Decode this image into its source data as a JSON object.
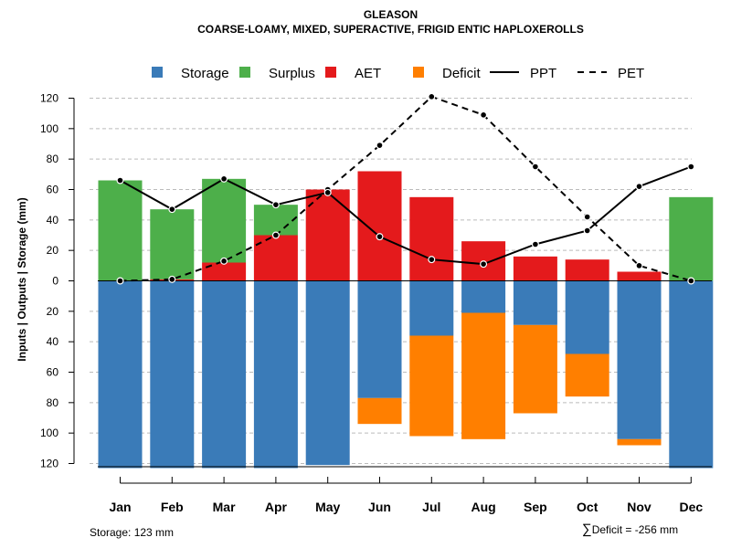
{
  "title": "GLEASON",
  "subtitle": "COARSE-LOAMY, MIXED, SUPERACTIVE, FRIGID ENTIC HAPLOXEROLLS",
  "colors": {
    "storage": "#3a7bb8",
    "surplus": "#4daf4a",
    "aet": "#e41a1c",
    "deficit": "#ff7f00",
    "grid": "#bbbbbb"
  },
  "chart_data": {
    "type": "bar",
    "title": "GLEASON",
    "subtitle": "COARSE-LOAMY, MIXED, SUPERACTIVE, FRIGID ENTIC HAPLOXEROLLS",
    "ylabel": "Inputs | Outputs | Storage    (mm)",
    "ylim": [
      -125,
      125
    ],
    "yticks": [
      120,
      100,
      80,
      60,
      40,
      20,
      0,
      -20,
      -40,
      -60,
      -80,
      -100,
      -120
    ],
    "ytick_labels": [
      "120",
      "100",
      "80",
      "60",
      "40",
      "20",
      "0",
      "20",
      "40",
      "60",
      "80",
      "100",
      "120"
    ],
    "legend": [
      "Storage",
      "Surplus",
      "AET",
      "Deficit",
      "PPT",
      "PET"
    ],
    "legend_position": "top",
    "categories": [
      "Jan",
      "Feb",
      "Mar",
      "Apr",
      "May",
      "Jun",
      "Jul",
      "Aug",
      "Sep",
      "Oct",
      "Nov",
      "Dec"
    ],
    "series": [
      {
        "name": "AET",
        "kind": "bar-up",
        "values": [
          0,
          1,
          12,
          30,
          60,
          72,
          55,
          26,
          16,
          14,
          6,
          0
        ]
      },
      {
        "name": "Surplus",
        "kind": "bar-up-stacked",
        "values": [
          66,
          46,
          55,
          20,
          0,
          0,
          0,
          0,
          0,
          0,
          0,
          55
        ]
      },
      {
        "name": "Storage",
        "kind": "bar-down",
        "values": [
          123,
          123,
          123,
          123,
          121,
          77,
          36,
          21,
          29,
          48,
          104,
          123
        ]
      },
      {
        "name": "Deficit",
        "kind": "bar-down-stacked",
        "values": [
          0,
          0,
          0,
          0,
          0,
          17,
          66,
          83,
          58,
          28,
          4,
          0
        ]
      },
      {
        "name": "PPT",
        "kind": "line-solid",
        "values": [
          66,
          47,
          67,
          50,
          58,
          29,
          14,
          11,
          24,
          33,
          62,
          75
        ]
      },
      {
        "name": "PET",
        "kind": "line-dashed",
        "values": [
          0,
          1,
          13,
          30,
          60,
          89,
          121,
          109,
          75,
          42,
          10,
          0
        ]
      }
    ]
  },
  "footer": {
    "storage_note": "Storage: 123 mm",
    "deficit_symbol": "∑",
    "deficit_note": "Deficit = -256 mm"
  }
}
